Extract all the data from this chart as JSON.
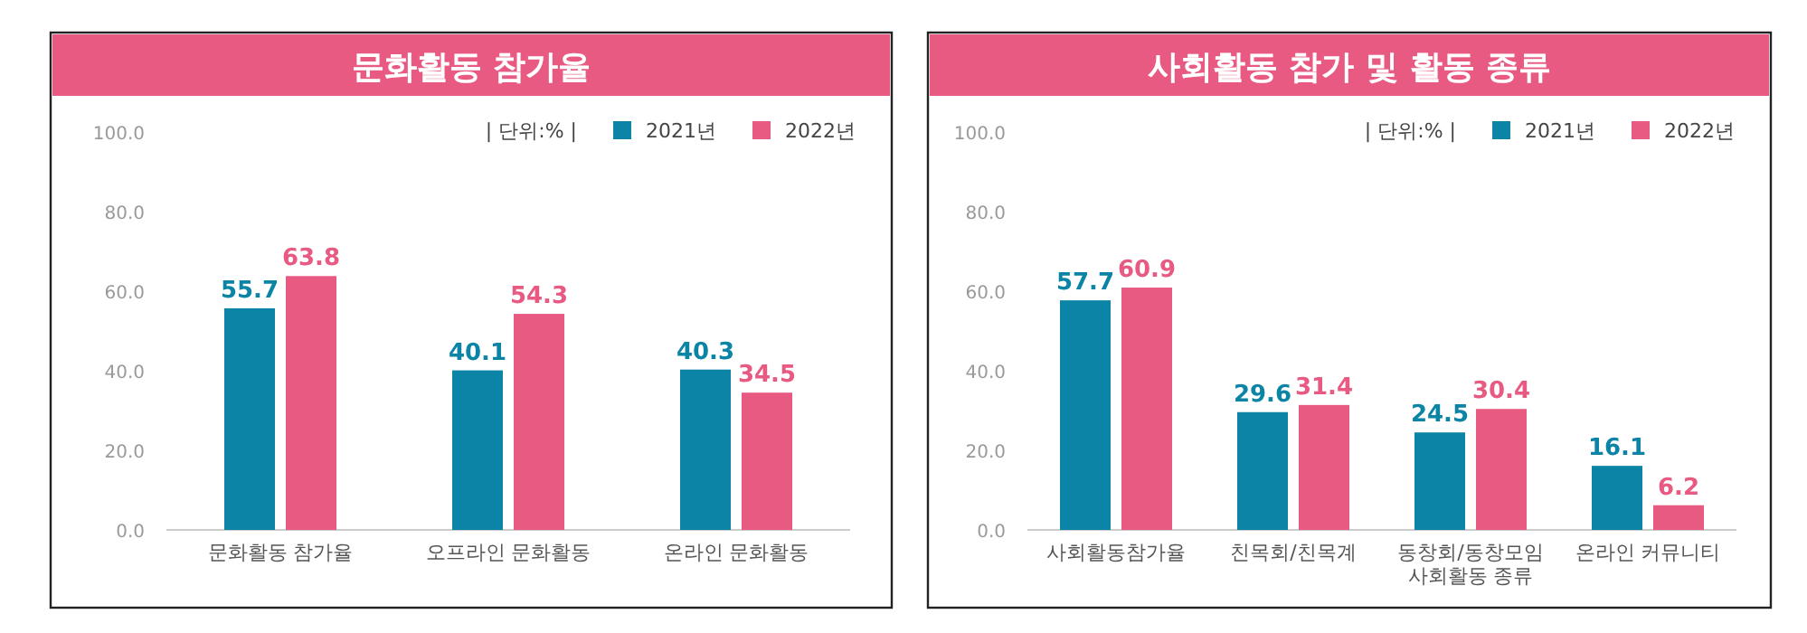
{
  "chart_data": [
    {
      "type": "bar",
      "title": "문화활동 참가율",
      "categories": [
        "문화활동 참가율",
        "오프라인 문화활동",
        "온라인 문화활동"
      ],
      "series": [
        {
          "name": "2021년",
          "color": "#0b84a5",
          "values": [
            55.7,
            40.1,
            40.3
          ]
        },
        {
          "name": "2022년",
          "color": "#e85a82",
          "values": [
            63.8,
            54.3,
            34.5
          ]
        }
      ],
      "ylim": [
        0,
        100
      ],
      "yticks": [
        {
          "value": 0,
          "label": "0.0"
        },
        {
          "value": 20,
          "label": "20.0"
        },
        {
          "value": 40,
          "label": "40.0"
        },
        {
          "value": 60,
          "label": "60.0"
        },
        {
          "value": 80,
          "label": "80.0"
        },
        {
          "value": 100,
          "label": "100.0"
        }
      ],
      "data_labels": true,
      "legend": "top right",
      "grid": false,
      "annotations": [
        "| 단위:% |"
      ]
    },
    {
      "type": "bar",
      "title": "사회활동 참가 및 활동 종류",
      "categories": [
        "사회활동참가율",
        "친목회/친목계",
        "동창회/동창모임\n사회활동 종류",
        "온라인 커뮤니티"
      ],
      "series": [
        {
          "name": "2021년",
          "color": "#0b84a5",
          "values": [
            57.7,
            29.6,
            24.5,
            16.1
          ]
        },
        {
          "name": "2022년",
          "color": "#e85a82",
          "values": [
            60.9,
            31.4,
            30.4,
            6.2
          ]
        }
      ],
      "ylim": [
        0,
        100
      ],
      "yticks": [
        {
          "value": 0,
          "label": "0.0"
        },
        {
          "value": 20,
          "label": "20.0"
        },
        {
          "value": 40,
          "label": "40.0"
        },
        {
          "value": 60,
          "label": "60.0"
        },
        {
          "value": 80,
          "label": "80.0"
        },
        {
          "value": 100,
          "label": "100.0"
        }
      ],
      "data_labels": true,
      "legend": "top right",
      "grid": false,
      "annotations": [
        "| 단위:% |"
      ]
    }
  ]
}
